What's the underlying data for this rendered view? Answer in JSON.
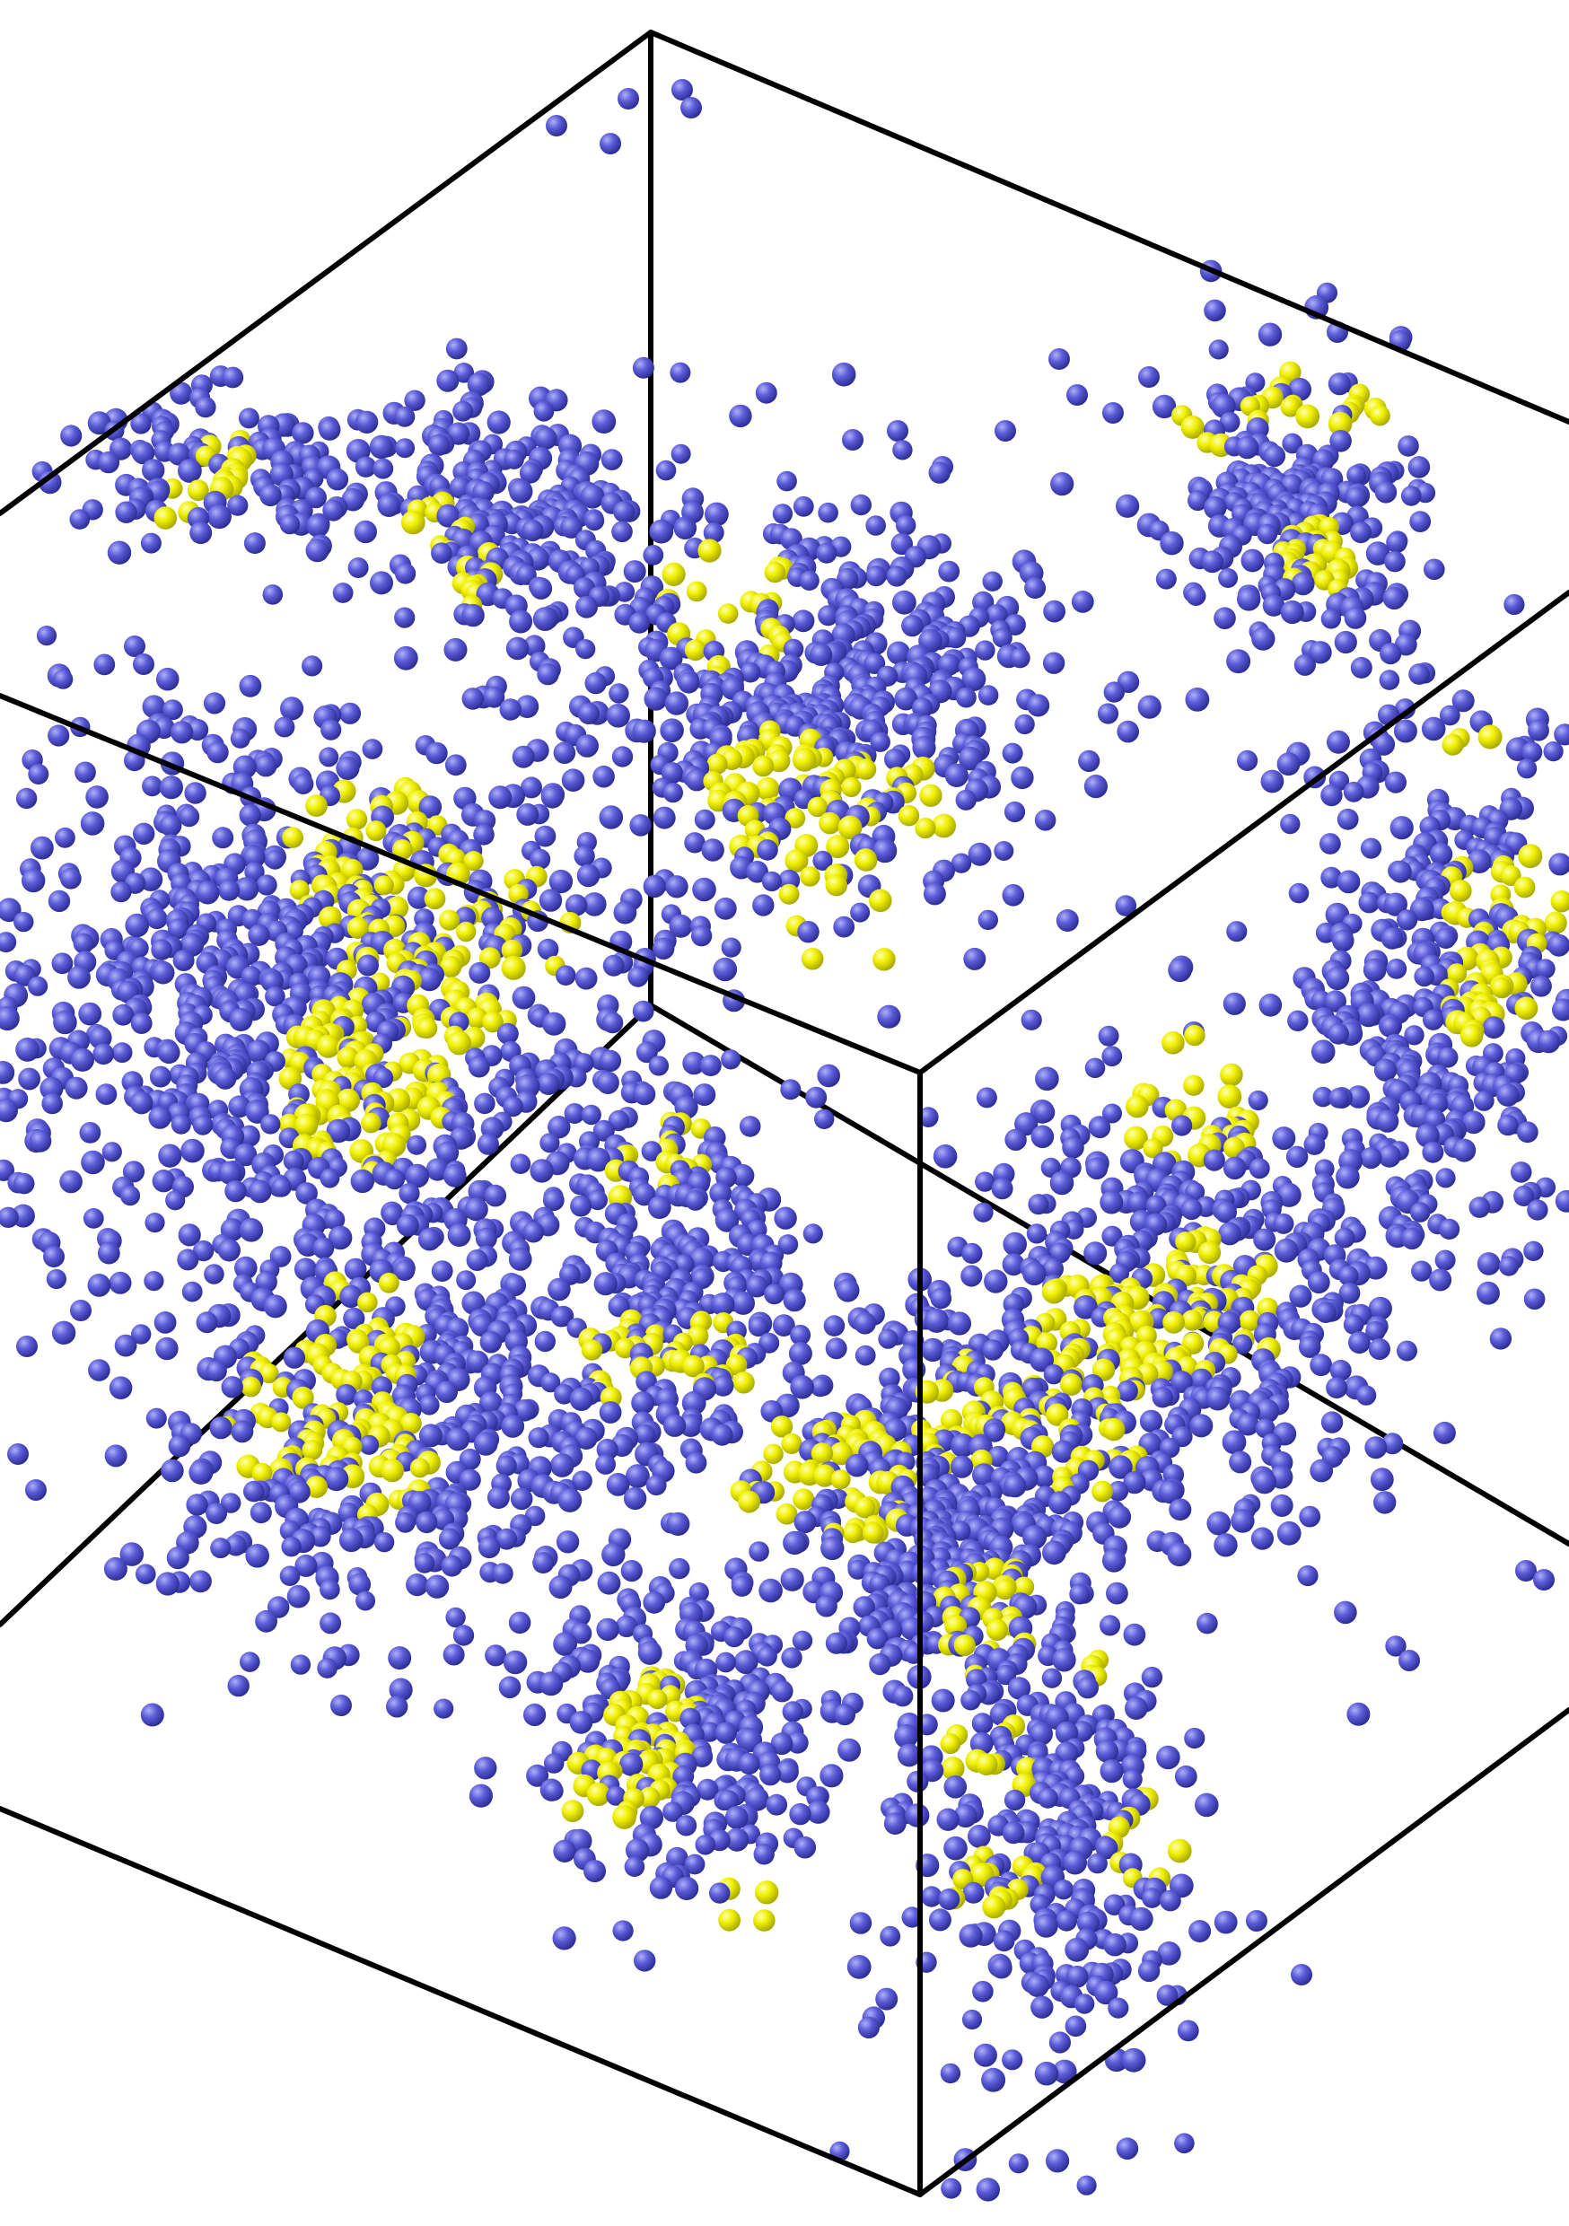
{
  "scene": {
    "kind": "molecular-dynamics-snapshot",
    "background_color": "#ffffff",
    "box_edge_color": "#000000",
    "species": [
      {
        "name": "blue-bead",
        "color": "#5b5bd6",
        "highlight": "#a9a9f5",
        "shade": "#2f2f9a"
      },
      {
        "name": "yellow-bead",
        "color": "#f2f200",
        "highlight": "#ffff9e",
        "shade": "#b5b500"
      }
    ],
    "clusters": [
      {
        "id": "cluster-top-left-small"
      },
      {
        "id": "cluster-top-left-arm"
      },
      {
        "id": "cluster-center-top"
      },
      {
        "id": "cluster-top-right"
      },
      {
        "id": "cluster-right-middle"
      },
      {
        "id": "cluster-left-large"
      },
      {
        "id": "cluster-left-lower"
      },
      {
        "id": "cluster-center-middle"
      },
      {
        "id": "cluster-center-lower"
      },
      {
        "id": "cluster-right-lower"
      },
      {
        "id": "cluster-bottom-center"
      },
      {
        "id": "cluster-bottom-right"
      }
    ]
  }
}
